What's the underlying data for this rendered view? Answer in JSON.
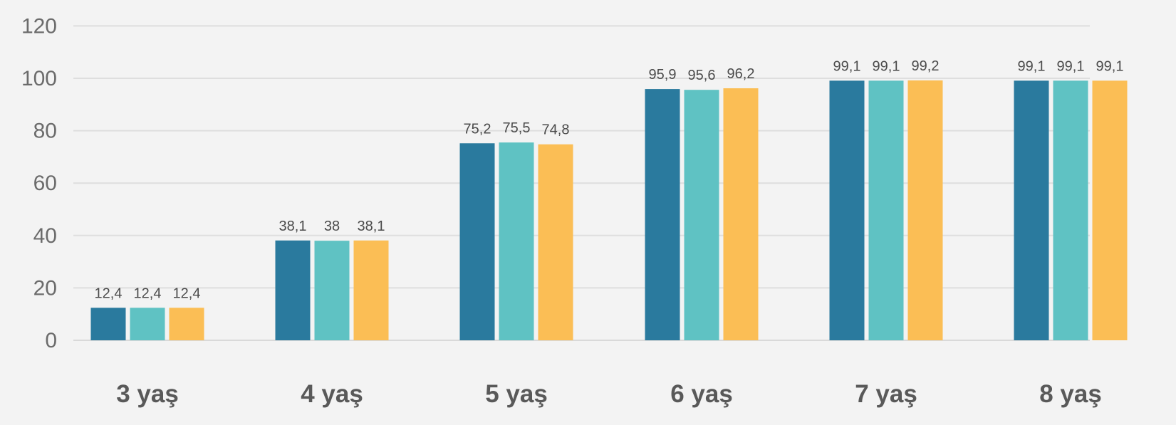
{
  "chart_data": {
    "type": "bar",
    "categories": [
      "3 yaş",
      "4 yaş",
      "5 yaş",
      "6 yaş",
      "7 yaş",
      "8 yaş"
    ],
    "series": [
      {
        "values": [
          12.4,
          38.1,
          75.2,
          95.9,
          99.1,
          99.1
        ],
        "labels": [
          "12,4",
          "38,1",
          "75,2",
          "95,9",
          "99,1",
          "99,1"
        ],
        "color": "#2a7a9e"
      },
      {
        "values": [
          12.4,
          38.0,
          75.5,
          95.6,
          99.1,
          99.1
        ],
        "labels": [
          "12,4",
          "38",
          "75,5",
          "95,6",
          "99,1",
          "99,1"
        ],
        "color": "#5fc2c3"
      },
      {
        "values": [
          12.4,
          38.1,
          74.8,
          96.2,
          99.2,
          99.1
        ],
        "labels": [
          "12,4",
          "38,1",
          "74,8",
          "96,2",
          "99,2",
          "99,1"
        ],
        "color": "#fbbe55"
      }
    ],
    "y_ticks": [
      "0",
      "20",
      "40",
      "60",
      "80",
      "100",
      "120"
    ],
    "ylim": [
      0,
      120
    ],
    "grid": true,
    "legend": "none"
  }
}
